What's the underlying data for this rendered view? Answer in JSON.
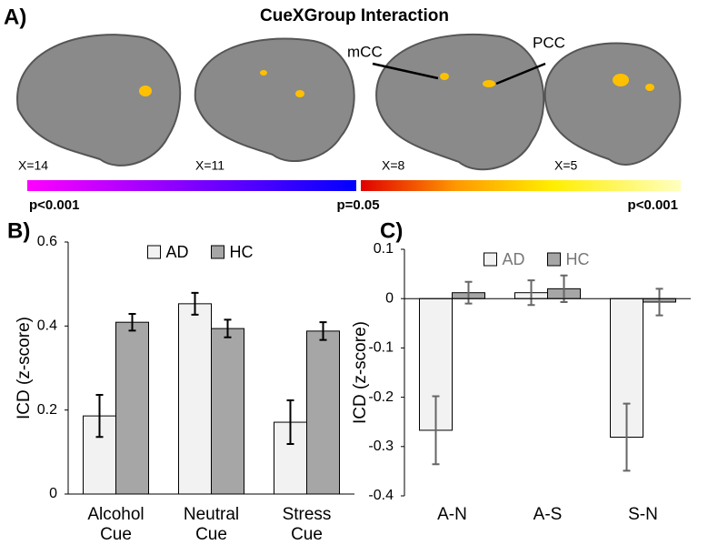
{
  "panel_a": {
    "panel_label": "A)",
    "title": "CueXGroup Interaction",
    "slices": [
      "X=14",
      "X=11",
      "X=8",
      "X=5"
    ],
    "annotations": [
      "mCC",
      "PCC"
    ],
    "colorbar_labels": [
      "p<0.001",
      "p=0.05",
      "p<0.001"
    ]
  },
  "chart_data": [
    {
      "type": "bar",
      "panel_label": "B)",
      "y_label": "ICD (z-score)",
      "categories": [
        "Alcohol Cue",
        "Neutral Cue",
        "Stress Cue"
      ],
      "series": [
        {
          "name": "AD",
          "color": "#f2f2f2",
          "values": [
            0.186,
            0.453,
            0.171
          ],
          "errors": [
            0.05,
            0.026,
            0.052
          ]
        },
        {
          "name": "HC",
          "color": "#a6a6a6",
          "values": [
            0.409,
            0.394,
            0.388
          ],
          "errors": [
            0.02,
            0.021,
            0.021
          ]
        }
      ],
      "ylim": [
        0,
        0.6
      ],
      "yticks": [
        0,
        0.2,
        0.4,
        0.6
      ],
      "legend": "top",
      "grid": false
    },
    {
      "type": "bar",
      "panel_label": "C)",
      "y_label": "ICD (z-score)",
      "categories": [
        "A-N",
        "A-S",
        "S-N"
      ],
      "series": [
        {
          "name": "AD",
          "color": "#f2f2f2",
          "values": [
            -0.267,
            0.012,
            -0.281
          ],
          "errors": [
            0.069,
            0.025,
            0.068
          ]
        },
        {
          "name": "HC",
          "color": "#a6a6a6",
          "values": [
            0.012,
            0.02,
            -0.007
          ],
          "errors": [
            0.022,
            0.027,
            0.027
          ]
        }
      ],
      "ylim": [
        -0.4,
        0.1
      ],
      "yticks": [
        -0.4,
        -0.3,
        -0.2,
        -0.1,
        0,
        0.1
      ],
      "legend": "top",
      "grid": false
    }
  ]
}
